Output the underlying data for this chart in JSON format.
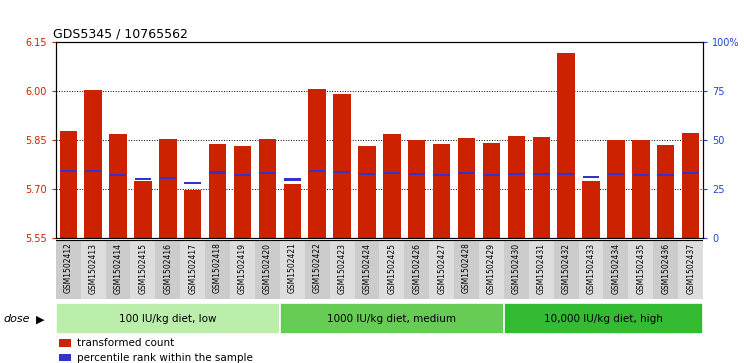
{
  "title": "GDS5345 / 10765562",
  "samples": [
    "GSM1502412",
    "GSM1502413",
    "GSM1502414",
    "GSM1502415",
    "GSM1502416",
    "GSM1502417",
    "GSM1502418",
    "GSM1502419",
    "GSM1502420",
    "GSM1502421",
    "GSM1502422",
    "GSM1502423",
    "GSM1502424",
    "GSM1502425",
    "GSM1502426",
    "GSM1502427",
    "GSM1502428",
    "GSM1502429",
    "GSM1502430",
    "GSM1502431",
    "GSM1502432",
    "GSM1502433",
    "GSM1502434",
    "GSM1502435",
    "GSM1502436",
    "GSM1502437"
  ],
  "red_values": [
    5.878,
    6.002,
    5.867,
    5.725,
    5.851,
    5.695,
    5.838,
    5.83,
    5.851,
    5.716,
    6.005,
    5.99,
    5.83,
    5.867,
    5.848,
    5.838,
    5.855,
    5.84,
    5.862,
    5.858,
    6.115,
    5.725,
    5.848,
    5.848,
    5.835,
    5.87
  ],
  "blue_values": [
    5.755,
    5.755,
    5.742,
    5.73,
    5.732,
    5.718,
    5.75,
    5.742,
    5.748,
    5.728,
    5.755,
    5.752,
    5.745,
    5.748,
    5.745,
    5.742,
    5.748,
    5.742,
    5.745,
    5.745,
    5.745,
    5.735,
    5.745,
    5.742,
    5.742,
    5.748
  ],
  "ymin": 5.55,
  "ymax": 6.15,
  "yticks": [
    5.55,
    5.7,
    5.85,
    6.0,
    6.15
  ],
  "right_yticks": [
    0,
    25,
    50,
    75,
    100
  ],
  "right_ytick_labels": [
    "0",
    "25",
    "50",
    "75",
    "100%"
  ],
  "dose_groups": [
    {
      "label": "100 IU/kg diet, low",
      "start": 0,
      "end": 9
    },
    {
      "label": "1000 IU/kg diet, medium",
      "start": 9,
      "end": 18
    },
    {
      "label": "10,000 IU/kg diet, high",
      "start": 18,
      "end": 26
    }
  ],
  "bar_color": "#cc2200",
  "blue_color": "#3333cc",
  "group_colors": [
    "#bbeeaa",
    "#66cc55",
    "#33bb33"
  ],
  "plot_bg_color": "#ffffff",
  "tick_bg_color": "#cccccc",
  "legend_items": [
    {
      "color": "#cc2200",
      "label": "transformed count"
    },
    {
      "color": "#3333cc",
      "label": "percentile rank within the sample"
    }
  ]
}
